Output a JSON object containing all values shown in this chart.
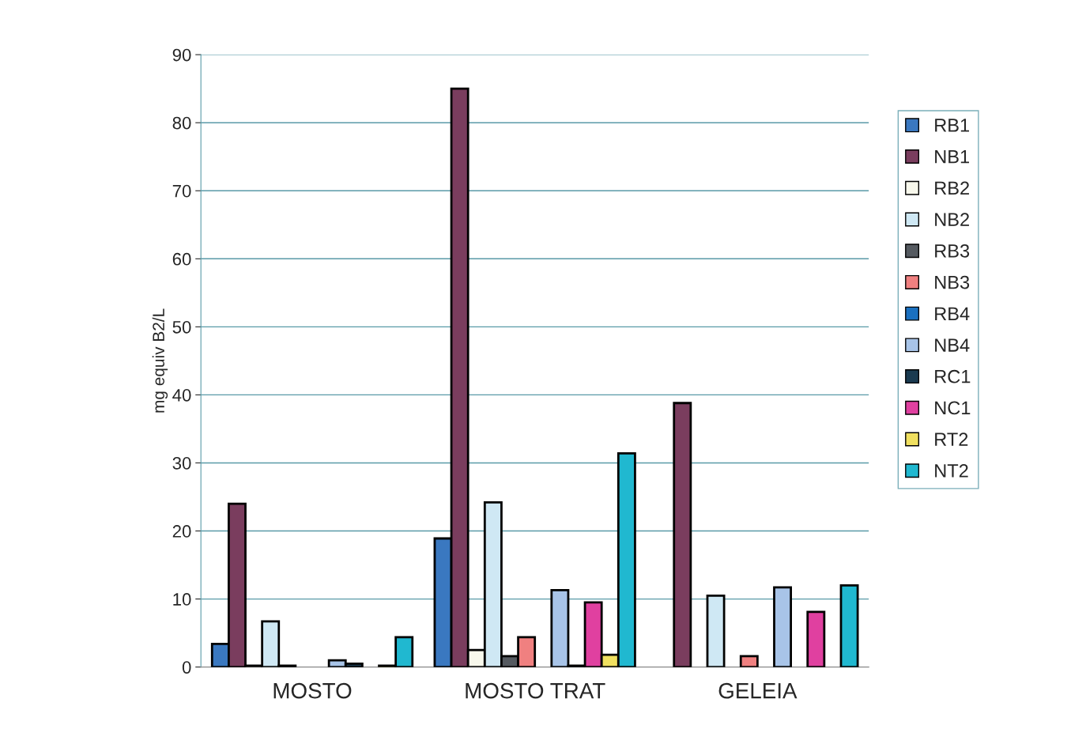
{
  "chart_data": {
    "type": "bar",
    "ylabel": "mg equiv B2/L",
    "categories": [
      "MOSTO",
      "MOSTO TRAT",
      "GELEIA"
    ],
    "series": [
      {
        "name": "RB1",
        "color": "#3a78c0",
        "values": [
          3.4,
          18.9,
          null
        ]
      },
      {
        "name": "NB1",
        "color": "#7a3d5e",
        "values": [
          24,
          85,
          38.8
        ]
      },
      {
        "name": "RB2",
        "color": "#f8f8ec",
        "values": [
          0.2,
          2.5,
          null
        ]
      },
      {
        "name": "NB2",
        "color": "#cfe8f4",
        "values": [
          6.7,
          24.2,
          10.5
        ]
      },
      {
        "name": "RB3",
        "color": "#555a60",
        "values": [
          0.2,
          1.6,
          null
        ]
      },
      {
        "name": "NB3",
        "color": "#f08080",
        "values": [
          null,
          4.4,
          1.6
        ]
      },
      {
        "name": "RB4",
        "color": "#1a70c0",
        "values": [
          null,
          null,
          null
        ]
      },
      {
        "name": "NB4",
        "color": "#a8c4e8",
        "values": [
          1.0,
          11.3,
          11.7
        ]
      },
      {
        "name": "RC1",
        "color": "#1a3a50",
        "values": [
          0.5,
          0.2,
          null
        ]
      },
      {
        "name": "NC1",
        "color": "#e040a0",
        "values": [
          null,
          9.5,
          8.1
        ]
      },
      {
        "name": "RT2",
        "color": "#f0e060",
        "values": [
          0.2,
          1.8,
          null
        ]
      },
      {
        "name": "NT2",
        "color": "#20b8d0",
        "values": [
          4.4,
          31.4,
          12.0
        ]
      }
    ],
    "ylim": [
      0,
      90
    ],
    "yticks": [
      0,
      10,
      20,
      30,
      40,
      50,
      60,
      70,
      80,
      90
    ],
    "grid": "y",
    "legend": "right"
  }
}
